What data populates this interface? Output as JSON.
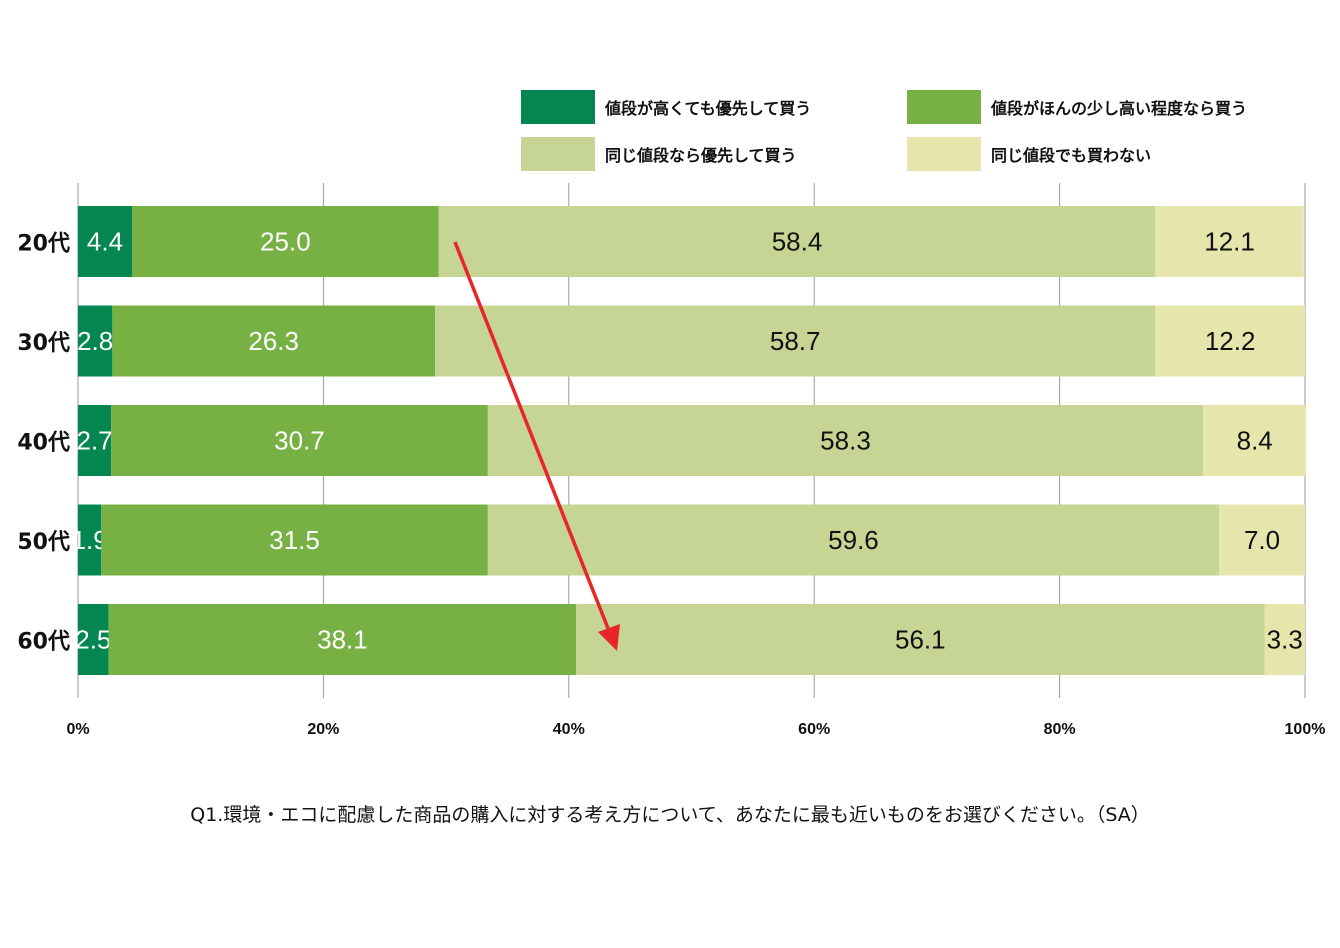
{
  "chart_data": {
    "type": "bar",
    "orientation": "horizontal-stacked-100",
    "categories": [
      "20代",
      "30代",
      "40代",
      "50代",
      "60代"
    ],
    "series": [
      {
        "name": "値段が高くても優先して買う",
        "color": "#048650",
        "label_color": "#ffffff",
        "values": [
          4.4,
          2.8,
          2.7,
          1.9,
          2.5
        ]
      },
      {
        "name": "値段がほんの少し高い程度なら買う",
        "color": "#77b043",
        "label_color": "#ffffff",
        "values": [
          25.0,
          26.3,
          30.7,
          31.5,
          38.1
        ]
      },
      {
        "name": "同じ値段なら優先して買う",
        "color": "#c6d494",
        "label_color": "#111111",
        "values": [
          58.4,
          58.7,
          58.3,
          59.6,
          56.1
        ]
      },
      {
        "name": "同じ値段でも買わない",
        "color": "#e5e5ac",
        "label_color": "#111111",
        "values": [
          12.1,
          12.2,
          8.4,
          7.0,
          3.3
        ]
      }
    ],
    "value_labels": [
      [
        "4.4",
        "25.0",
        "58.4",
        "12.1"
      ],
      [
        "2.8",
        "26.3",
        "58.7",
        "12.2"
      ],
      [
        "2.7",
        "30.7",
        "58.3",
        "8.4"
      ],
      [
        "1.9",
        "31.5",
        "59.6",
        "7.0"
      ],
      [
        "2.5",
        "38.1",
        "56.1",
        "3.3"
      ]
    ],
    "x_ticks": [
      "0%",
      "20%",
      "40%",
      "60%",
      "80%",
      "100%"
    ],
    "xlim": [
      0,
      100
    ],
    "grid": true,
    "legend_position": "top-right",
    "annotation": {
      "type": "arrow",
      "color": "#e8262a"
    },
    "caption": "Q1.環境・エコに配慮した商品の購入に対する考え方について、あなたに最も近いものをお選びください。（SA）"
  }
}
